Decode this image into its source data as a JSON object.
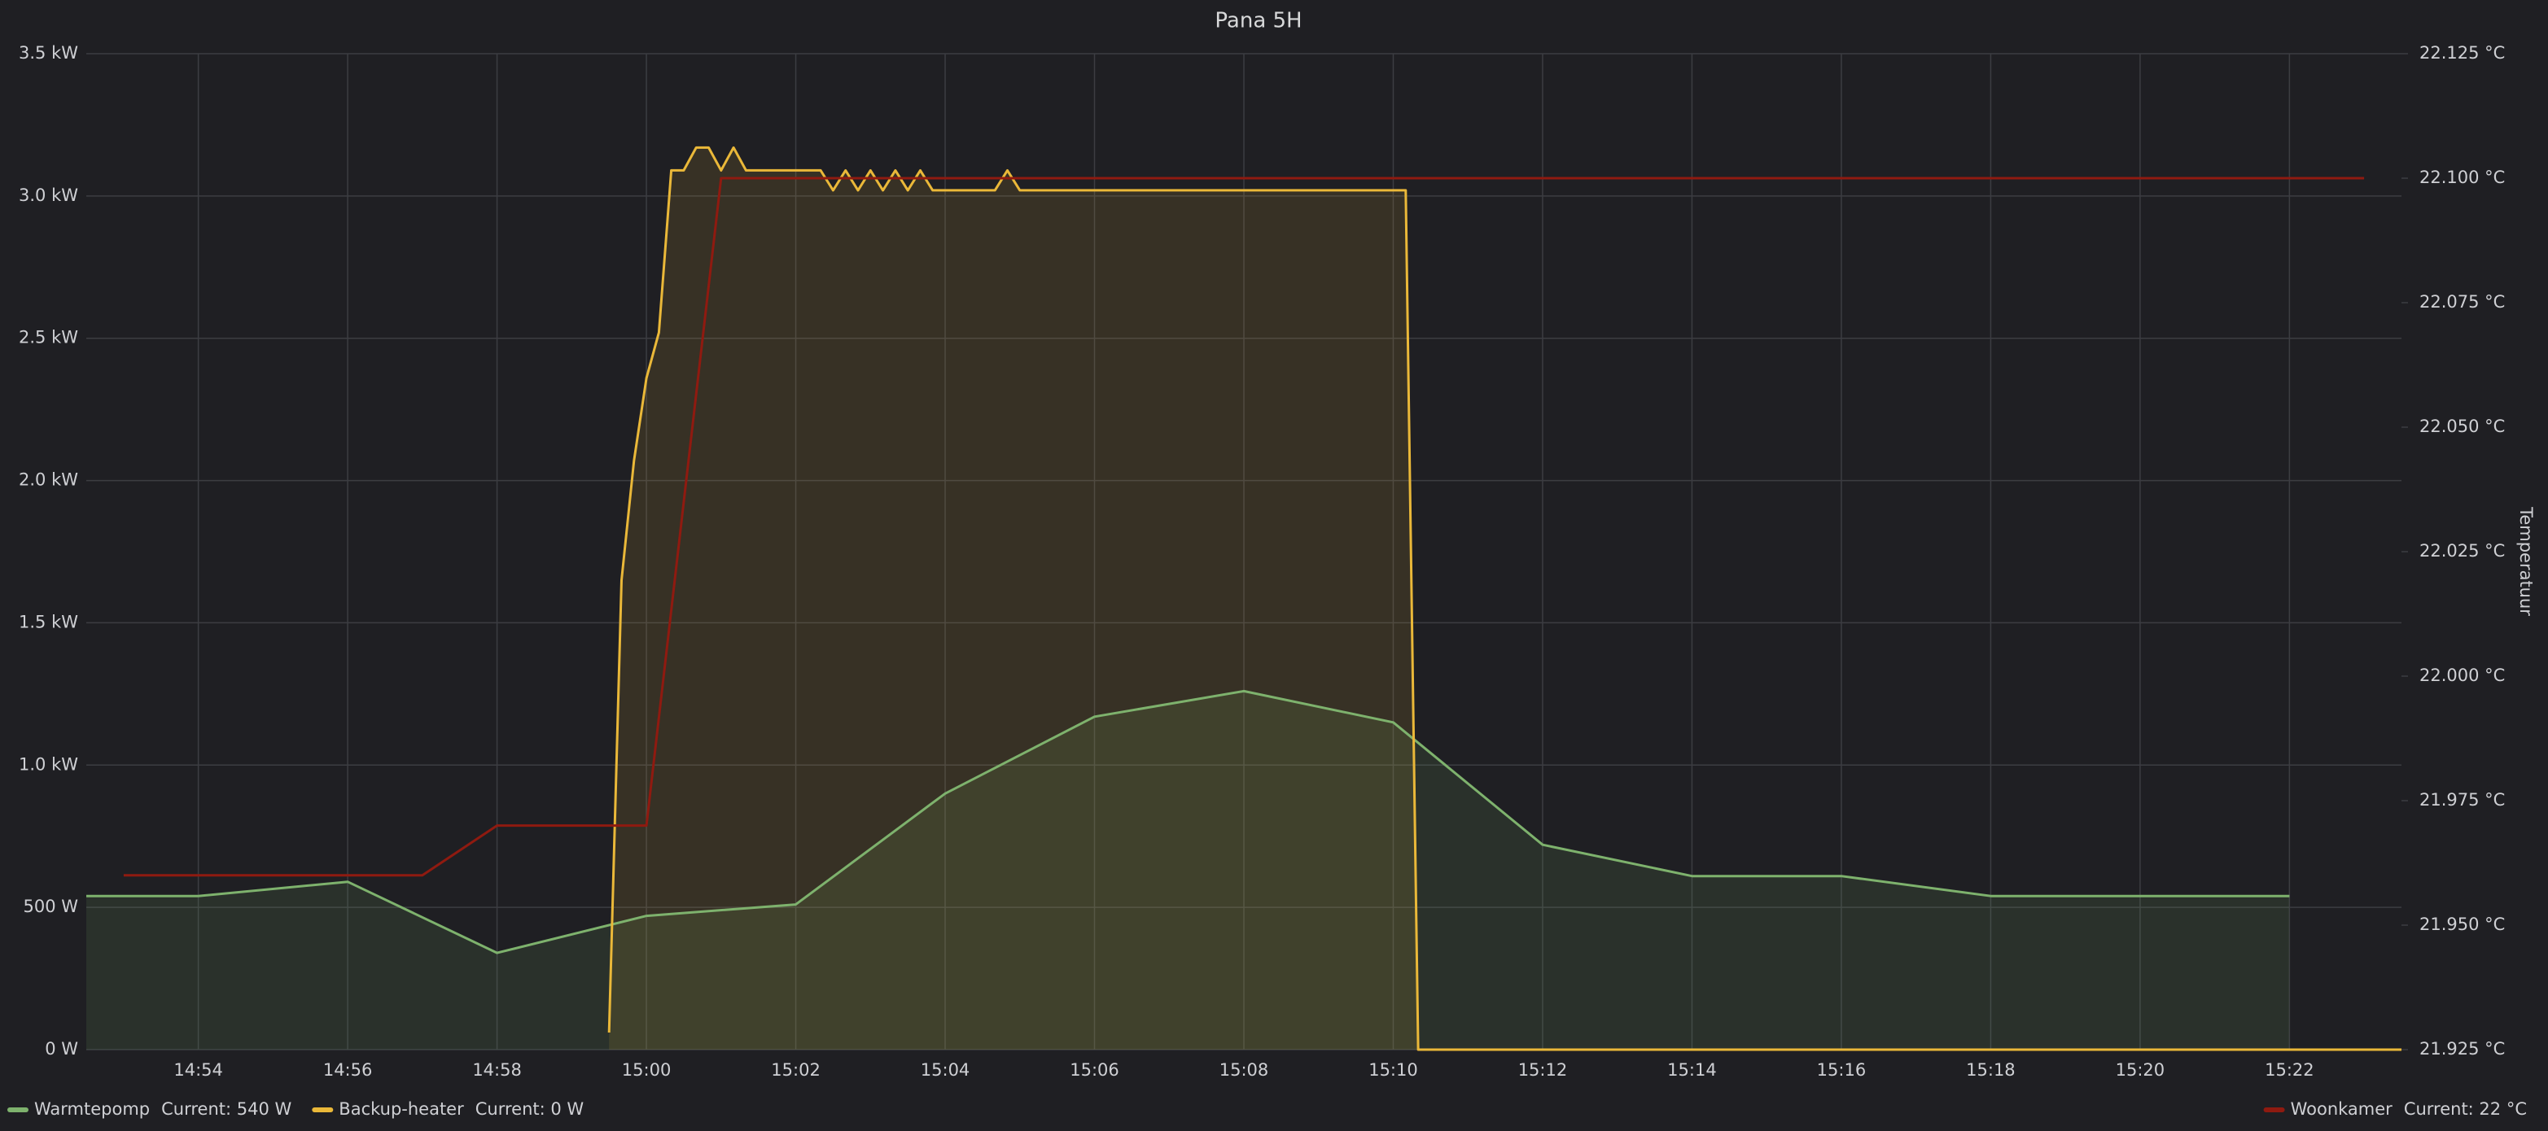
{
  "chart_data": {
    "type": "line",
    "title": "Pana 5H",
    "y2label": "Temperatuur",
    "xlim": [
      "14:52:30",
      "15:23:30"
    ],
    "xticks": [
      "14:54",
      "14:56",
      "14:58",
      "15:00",
      "15:02",
      "15:04",
      "15:06",
      "15:08",
      "15:10",
      "15:12",
      "15:14",
      "15:16",
      "15:18",
      "15:20",
      "15:22"
    ],
    "ylim": [
      0,
      3500
    ],
    "yticks": [
      {
        "value": 0,
        "label": "0 W"
      },
      {
        "value": 500,
        "label": "500 W"
      },
      {
        "value": 1000,
        "label": "1.0 kW"
      },
      {
        "value": 1500,
        "label": "1.5 kW"
      },
      {
        "value": 2000,
        "label": "2.0 kW"
      },
      {
        "value": 2500,
        "label": "2.5 kW"
      },
      {
        "value": 3000,
        "label": "3.0 kW"
      },
      {
        "value": 3500,
        "label": "3.5 kW"
      }
    ],
    "y2lim": [
      21.925,
      22.125
    ],
    "y2ticks": [
      {
        "value": 21.925,
        "label": "21.925 °C"
      },
      {
        "value": 21.95,
        "label": "21.950 °C"
      },
      {
        "value": 21.975,
        "label": "21.975 °C"
      },
      {
        "value": 22.0,
        "label": "22.000 °C"
      },
      {
        "value": 22.025,
        "label": "22.025 °C"
      },
      {
        "value": 22.05,
        "label": "22.050 °C"
      },
      {
        "value": 22.075,
        "label": "22.075 °C"
      },
      {
        "value": 22.1,
        "label": "22.100 °C"
      },
      {
        "value": 22.125,
        "label": "22.125 °C"
      }
    ],
    "grid": true,
    "series": [
      {
        "name": "Warmtepomp",
        "color": "#7eb26d",
        "fill": true,
        "legend_current": "Current: 540 W",
        "x": [
          "14:52:30",
          "14:54",
          "14:56",
          "14:58",
          "15:00",
          "15:02",
          "15:04",
          "15:06",
          "15:08",
          "15:10",
          "15:12",
          "15:14",
          "15:16",
          "15:18",
          "15:20",
          "15:22"
        ],
        "values": [
          540,
          540,
          590,
          340,
          470,
          510,
          900,
          1170,
          1260,
          1150,
          720,
          610,
          610,
          540,
          540,
          540
        ]
      },
      {
        "name": "Backup-heater",
        "color": "#eab839",
        "fill": true,
        "legend_current": "Current: 0 W",
        "x": [
          "14:59:30",
          "14:59:40",
          "14:59:50",
          "15:00:00",
          "15:00:10",
          "15:00:20",
          "15:00:30",
          "15:00:40",
          "15:00:50",
          "15:01:00",
          "15:01:10",
          "15:01:20",
          "15:02:20",
          "15:02:30",
          "15:02:40",
          "15:02:50",
          "15:03:00",
          "15:03:10",
          "15:03:20",
          "15:03:30",
          "15:03:40",
          "15:03:50",
          "15:04:40",
          "15:04:50",
          "15:05:00",
          "15:10:10",
          "15:10:20",
          "15:23:30"
        ],
        "values": [
          60,
          1650,
          2070,
          2360,
          2520,
          3090,
          3090,
          3170,
          3170,
          3090,
          3170,
          3090,
          3090,
          3020,
          3090,
          3020,
          3090,
          3020,
          3090,
          3020,
          3090,
          3020,
          3020,
          3090,
          3020,
          3020,
          0,
          0
        ]
      },
      {
        "name": "Woonkamer",
        "color": "#8f1a10",
        "axis": "y2",
        "legend_current": "Current: 22 °C",
        "x": [
          "14:53:00",
          "14:57:00",
          "14:58:00",
          "15:00:00",
          "15:01:00",
          "15:23:00"
        ],
        "values": [
          21.96,
          21.96,
          21.97,
          21.97,
          22.1,
          22.1
        ]
      }
    ]
  }
}
